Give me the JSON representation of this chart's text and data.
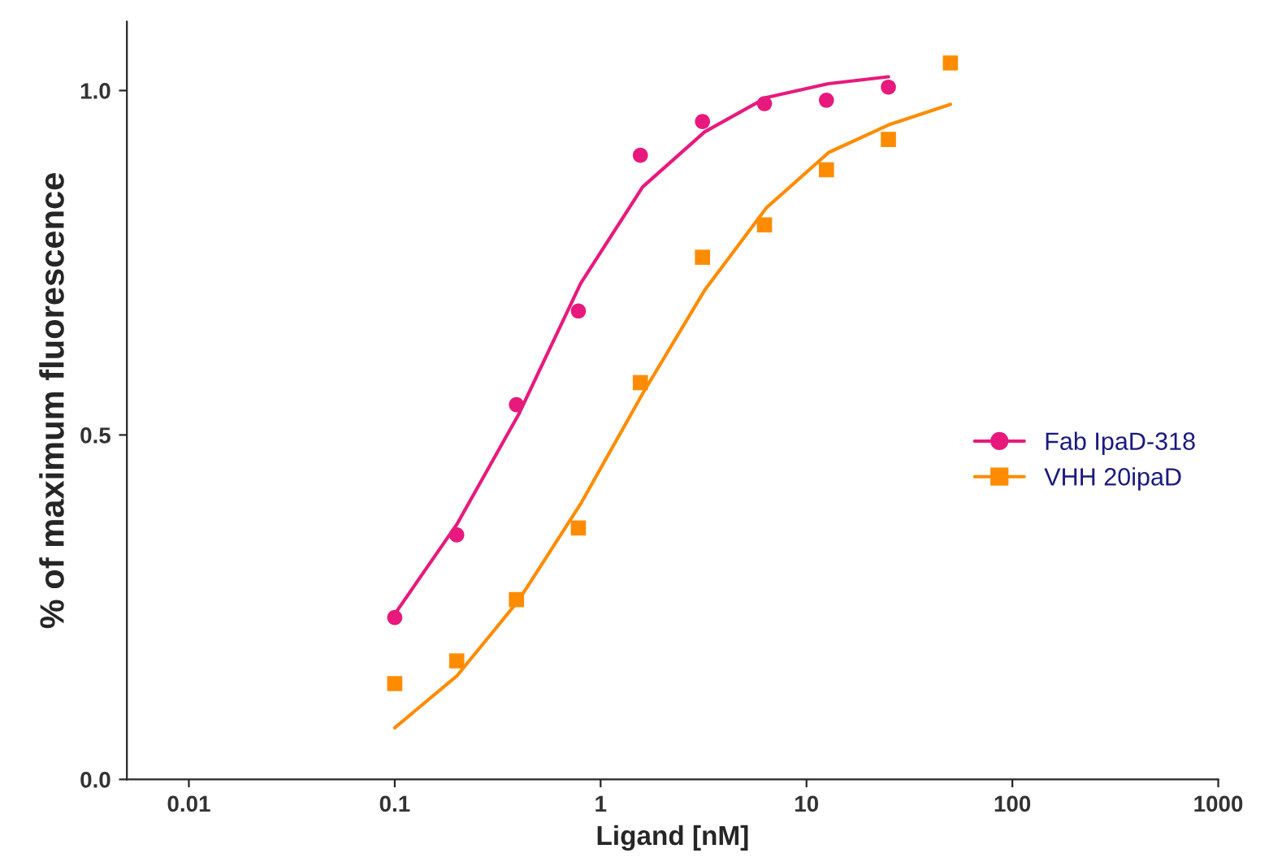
{
  "chart_data": {
    "type": "scatter",
    "xlabel": "Ligand [nM]",
    "ylabel": "% of maximum fluorescence",
    "log": "x",
    "xlim": [
      0.005,
      1000
    ],
    "ylim": [
      0,
      1.1
    ],
    "xticks": [
      0.01,
      0.1,
      1,
      10,
      100,
      1000
    ],
    "yticks": [
      {
        "value": 0,
        "label": "0.0"
      },
      {
        "value": 0.5,
        "label": "0.5"
      },
      {
        "value": 1,
        "label": "1.0"
      }
    ],
    "grid": false,
    "legend": "right",
    "series": [
      {
        "name": "Fab IpaD-318",
        "marker": "circle",
        "color": "#e8197d",
        "x": [
          0.1,
          0.2,
          0.39,
          0.78,
          1.56,
          3.125,
          6.25,
          12.5,
          25
        ],
        "values": [
          0.235,
          0.355,
          0.544,
          0.68,
          0.906,
          0.955,
          0.981,
          0.986,
          1.005
        ]
      },
      {
        "name": "VHH 20ipaD",
        "marker": "square",
        "color": "#ff8c00",
        "x": [
          0.1,
          0.2,
          0.39,
          0.78,
          1.56,
          3.125,
          6.25,
          12.5,
          25,
          50
        ],
        "values": [
          0.139,
          0.172,
          0.261,
          0.365,
          0.576,
          0.758,
          0.805,
          0.885,
          0.929,
          1.04
        ]
      },
      {
        "type": "line",
        "marker": "none",
        "color": "#e8197d",
        "x": [
          0.1,
          0.2,
          0.4,
          0.8,
          1.6,
          3.2,
          6.4,
          12.8,
          25
        ],
        "values": [
          0.24,
          0.37,
          0.53,
          0.72,
          0.86,
          0.94,
          0.99,
          1.01,
          1.02
        ]
      },
      {
        "type": "line",
        "marker": "none",
        "color": "#ff8c00",
        "x": [
          0.1,
          0.2,
          0.4,
          0.8,
          1.6,
          3.2,
          6.4,
          12.8,
          25,
          50
        ],
        "values": [
          0.075,
          0.15,
          0.26,
          0.4,
          0.56,
          0.71,
          0.83,
          0.91,
          0.95,
          0.98
        ]
      }
    ]
  }
}
